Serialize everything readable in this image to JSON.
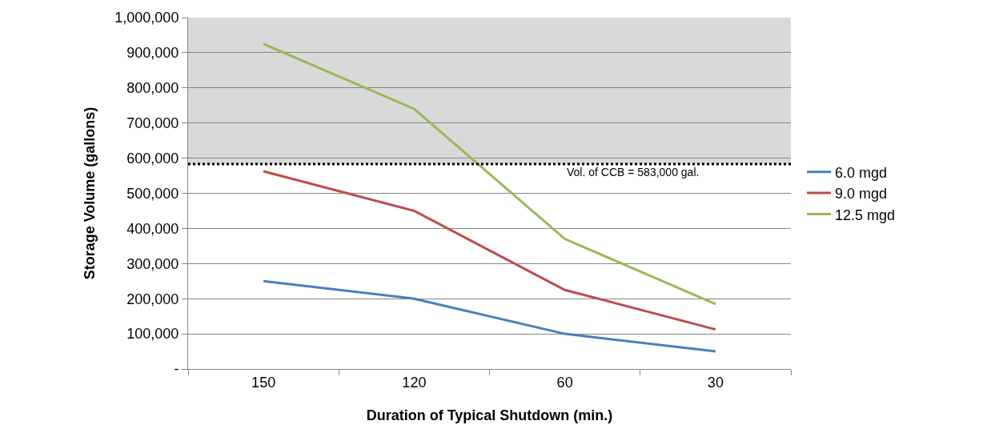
{
  "chart_data": {
    "type": "line",
    "xlabel": "Duration of Typical Shutdown (min.)",
    "ylabel": "Storage Volume (gallons)",
    "categories": [
      "150",
      "120",
      "60",
      "30"
    ],
    "series": [
      {
        "name": "6.0 mgd",
        "color": "#4a7ebb",
        "values": [
          250000,
          200000,
          100000,
          50000
        ]
      },
      {
        "name": "9.0 mgd",
        "color": "#be4b48",
        "values": [
          562500,
          450000,
          225000,
          112500
        ]
      },
      {
        "name": "12.5 mgd",
        "color": "#98b954",
        "values": [
          925000,
          740000,
          370000,
          185000
        ]
      }
    ],
    "ylim": [
      0,
      1000000
    ],
    "yticks": [
      {
        "value": 0,
        "label": "-"
      },
      {
        "value": 100000,
        "label": "100,000"
      },
      {
        "value": 200000,
        "label": "200,000"
      },
      {
        "value": 300000,
        "label": "300,000"
      },
      {
        "value": 400000,
        "label": "400,000"
      },
      {
        "value": 500000,
        "label": "500,000"
      },
      {
        "value": 600000,
        "label": "600,000"
      },
      {
        "value": 700000,
        "label": "700,000"
      },
      {
        "value": 800000,
        "label": "800,000"
      },
      {
        "value": 900000,
        "label": "900,000"
      },
      {
        "value": 1000000,
        "label": "1,000,000"
      }
    ],
    "ref_lines": [
      {
        "axis": "y",
        "value": 583000,
        "label": "Vol. of CCB = 583,000 gal.",
        "color": "#000000",
        "line_style": "dotted"
      }
    ],
    "bands": [
      {
        "axis": "y",
        "from": 583000,
        "to": 1000000,
        "color": "#d9d9d9"
      }
    ],
    "grid": "y",
    "legend": "right",
    "marker": "none",
    "line_style": "solid"
  }
}
